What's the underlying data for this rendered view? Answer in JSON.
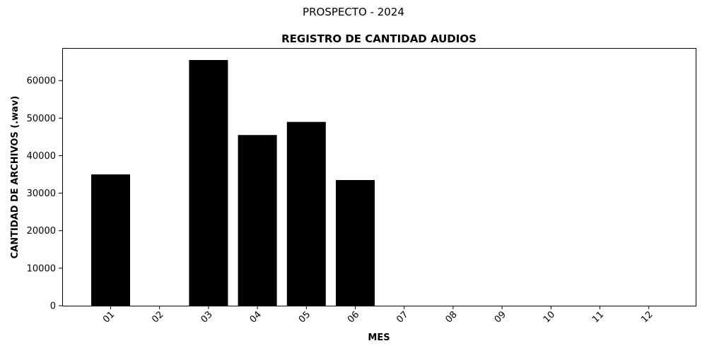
{
  "chart_data": {
    "type": "bar",
    "suptitle": "PROSPECTO - 2024",
    "title": "REGISTRO DE CANTIDAD AUDIOS",
    "xlabel": "MES",
    "ylabel": "CANTIDAD DE ARCHIVOS (.wav)",
    "categories": [
      "01",
      "02",
      "03",
      "04",
      "05",
      "06",
      "07",
      "08",
      "09",
      "10",
      "11",
      "12"
    ],
    "values": [
      35000,
      0,
      65500,
      45500,
      49000,
      33500,
      0,
      0,
      0,
      0,
      0,
      0
    ],
    "ylim": [
      0,
      68700
    ],
    "yticks": [
      0,
      10000,
      20000,
      30000,
      40000,
      50000,
      60000
    ],
    "bar_color": "#000000",
    "grid": false,
    "legend": false
  }
}
